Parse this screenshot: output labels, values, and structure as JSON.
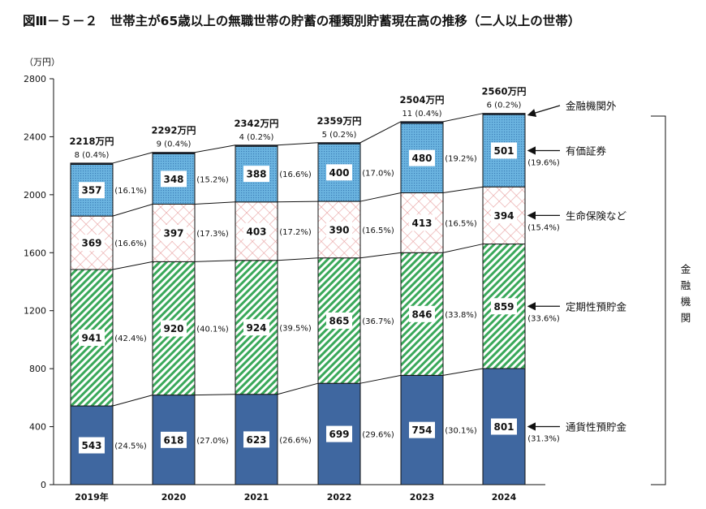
{
  "chart_data": {
    "type": "bar",
    "stacked": true,
    "title": "図Ⅲ－５－２　世帯主が65歳以上の無職世帯の貯蓄の種類別貯蓄現在高の推移（二人以上の世帯）",
    "ylabel": "（万円）",
    "ylim": [
      0,
      2800
    ],
    "yticks": [
      0,
      400,
      800,
      1200,
      1600,
      2000,
      2400,
      2800
    ],
    "categories": [
      "2019年",
      "2020",
      "2021",
      "2022",
      "2023",
      "2024"
    ],
    "totals": [
      "2218万円",
      "2292万円",
      "2342万円",
      "2359万円",
      "2504万円",
      "2560万円"
    ],
    "series": [
      {
        "name": "通貨性預貯金",
        "values": [
          543,
          618,
          623,
          699,
          754,
          801
        ],
        "shares": [
          "(24.5%)",
          "(27.0%)",
          "(26.6%)",
          "(29.6%)",
          "(30.1%)",
          "(31.3%)"
        ],
        "color": "#3f67a0",
        "pattern": "solid"
      },
      {
        "name": "定期性預貯金",
        "values": [
          941,
          920,
          924,
          865,
          846,
          859
        ],
        "shares": [
          "(42.4%)",
          "(40.1%)",
          "(39.5%)",
          "(36.7%)",
          "(33.8%)",
          "(33.6%)"
        ],
        "color": "#3aa85a",
        "pattern": "diagonal"
      },
      {
        "name": "生命保険など",
        "values": [
          369,
          397,
          403,
          390,
          413,
          394
        ],
        "shares": [
          "(16.6%)",
          "(17.3%)",
          "(17.2%)",
          "(16.5%)",
          "(16.5%)",
          "(15.4%)"
        ],
        "color": "#e8a0a0",
        "pattern": "crosshatch"
      },
      {
        "name": "有価証券",
        "values": [
          357,
          348,
          388,
          400,
          480,
          501
        ],
        "shares": [
          "(16.1%)",
          "(15.2%)",
          "(16.6%)",
          "(17.0%)",
          "(19.2%)",
          "(19.6%)"
        ],
        "color": "#5aa6d8",
        "pattern": "dots"
      },
      {
        "name": "金融機関外",
        "values": [
          8,
          9,
          4,
          5,
          11,
          6
        ],
        "shares": [
          "(0.4%)",
          "(0.4%)",
          "(0.2%)",
          "(0.2%)",
          "(0.4%)",
          "(0.2%)"
        ],
        "color": "#1f3050",
        "pattern": "solid"
      }
    ],
    "bracket_label": "金融機関",
    "grid": false
  }
}
